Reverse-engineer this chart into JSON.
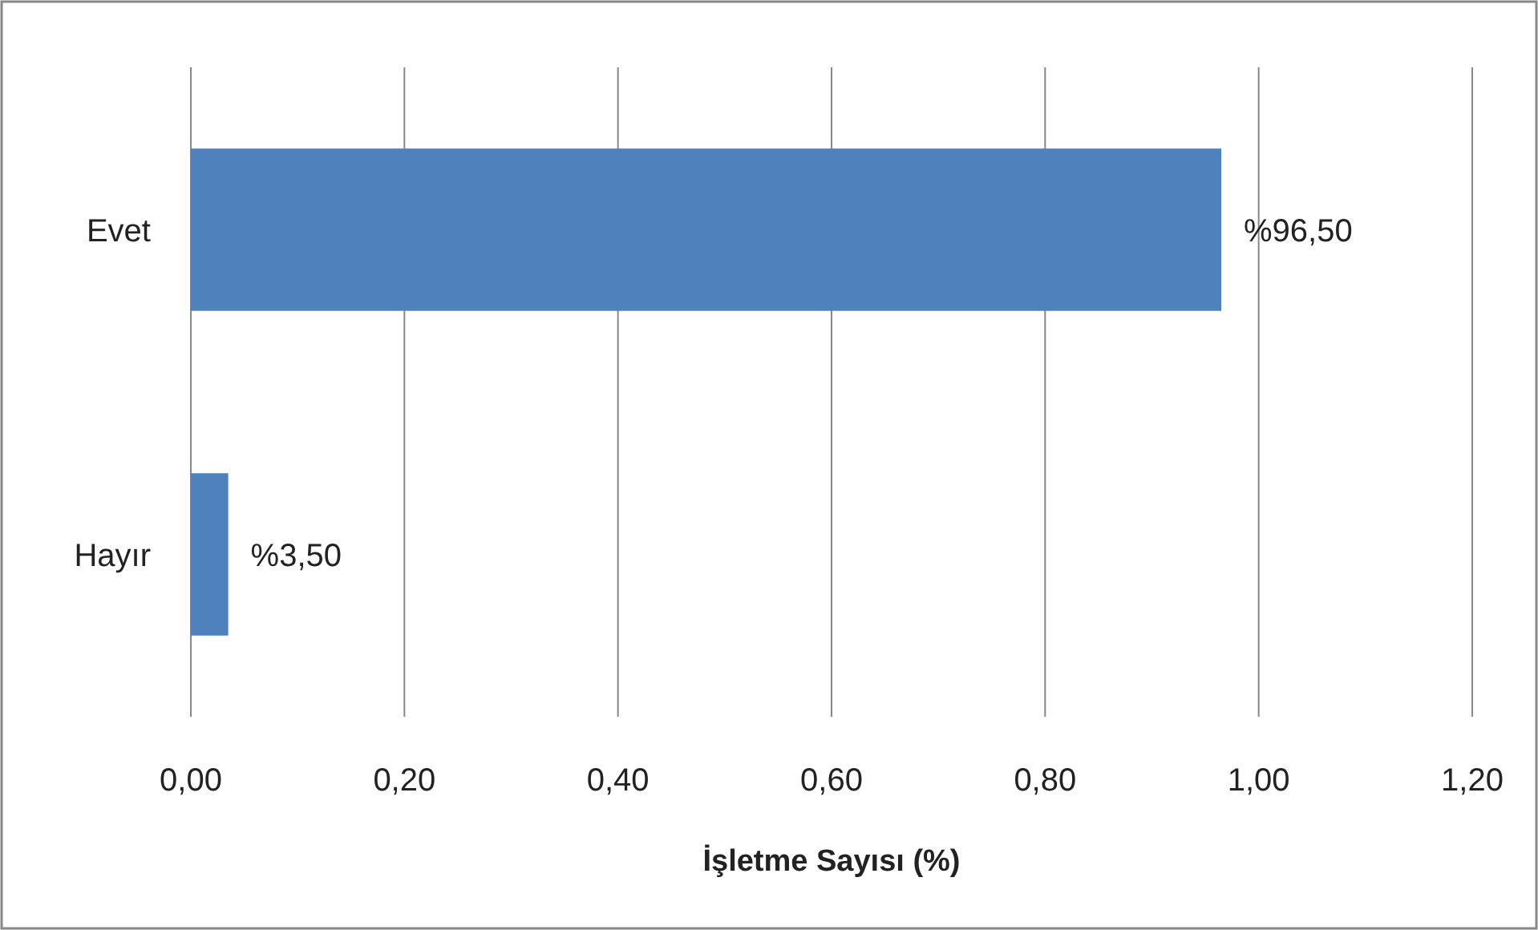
{
  "chart_data": {
    "type": "bar",
    "orientation": "horizontal",
    "categories": [
      "Evet",
      "Hayır"
    ],
    "values": [
      0.965,
      0.035
    ],
    "value_labels": [
      "%96,50",
      "%3,50"
    ],
    "color": "#4f81bd",
    "xlabel": "İşletme Sayısı (%)",
    "xlim": [
      0,
      1.2
    ],
    "xticks": [
      {
        "value": 0,
        "label": "0,00"
      },
      {
        "value": 0.2,
        "label": "0,20"
      },
      {
        "value": 0.4,
        "label": "0,40"
      },
      {
        "value": 0.6,
        "label": "0,60"
      },
      {
        "value": 0.8,
        "label": "0,80"
      },
      {
        "value": 1.0,
        "label": "1,00"
      },
      {
        "value": 1.2,
        "label": "1,20"
      }
    ],
    "grid": "x"
  }
}
